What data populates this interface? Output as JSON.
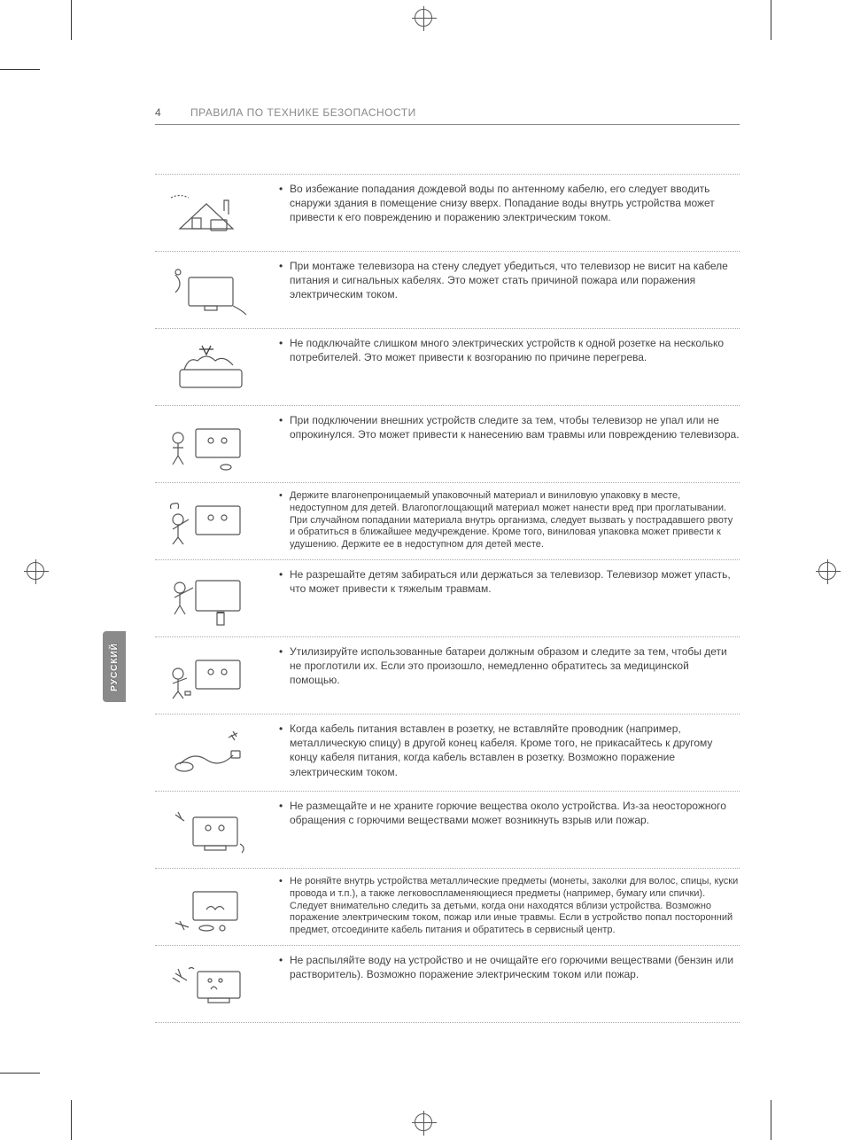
{
  "page_number": "4",
  "section_title": "ПРАВИЛА ПО ТЕХНИКЕ БЕЗОПАСНОСТИ",
  "language_tab": "РУССКИЙ",
  "rows": [
    {
      "text": "Во избежание попадания дождевой воды по антенному кабелю, его следует вводить снаружи здания в помещение снизу вверх. Попадание воды внутрь устройства может привести к его повреждению и поражению электрическим током."
    },
    {
      "text": "При монтаже телевизора на стену следует убедиться, что телевизор не висит на кабеле питания и сигнальных кабелях. Это может стать причиной пожара или поражения электрическим током."
    },
    {
      "text": "Не подключайте слишком много электрических устройств к одной розетке на несколько потребителей. Это может привести к возгоранию по причине перегрева."
    },
    {
      "text": "При подключении внешних устройств следите за тем, чтобы телевизор не упал или не опрокинулся. Это может привести к нанесению вам травмы или повреждению телевизора."
    },
    {
      "text": "Держите влагонепроницаемый упаковочный материал и виниловую упаковку в месте, недоступном для детей. Влагопоглощающий материал может нанести вред при проглатывании. При случайном попадании материала внутрь организма, следует вызвать у пострадавшего рвоту и обратиться в ближайшее медучреждение. Кроме того, виниловая упаковка может привести к удушению. Держите ее в недоступном для детей месте.",
      "small": true
    },
    {
      "text": "Не разрешайте детям забираться или держаться за телевизор. Телевизор может упасть, что может привести к тяжелым травмам."
    },
    {
      "text": "Утилизируйте использованные батареи должным образом и следите за тем, чтобы дети не проглотили их. Если это произошло, немедленно обратитесь за медицинской помощью."
    },
    {
      "text": "Когда кабель питания вставлен в розетку, не вставляйте проводник (например, металлическую спицу) в другой конец кабеля. Кроме того, не прикасайтесь к другому концу кабеля питания, когда кабель вставлен в розетку. Возможно поражение электрическим током."
    },
    {
      "text": "Не размещайте и не храните горючие вещества около устройства. Из-за неосторожного обращения с горючими веществами может возникнуть взрыв или пожар."
    },
    {
      "text": "Не роняйте внутрь устройства металлические предметы (монеты, заколки для волос, спицы, куски провода и т.п.), а также легковоспламеняющиеся предметы (например, бумагу или спички). Следует внимательно следить за детьми, когда они находятся вблизи устройства. Возможно поражение электрическим током, пожар или иные травмы. Если в устройство попал посторонний предмет, отсоедините кабель питания и обратитесь в сервисный центр.",
      "small": true
    },
    {
      "text": "Не распыляйте воду на устройство и не очищайте его горючими веществами (бензин или растворитель). Возможно поражение электрическим током или пожар."
    }
  ]
}
